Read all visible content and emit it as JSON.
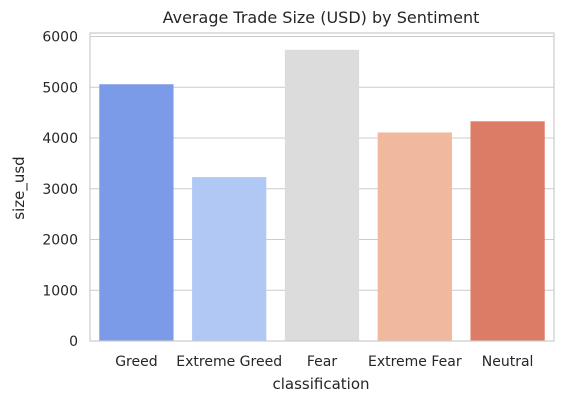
{
  "chart_data": {
    "type": "bar",
    "title": "Average Trade Size (USD) by Sentiment",
    "xlabel": "classification",
    "ylabel": "size_usd",
    "categories": [
      "Greed",
      "Extreme Greed",
      "Fear",
      "Extreme Fear",
      "Neutral"
    ],
    "values": [
      5060,
      3230,
      5740,
      4110,
      4330
    ],
    "colors": [
      "#7b9ae8",
      "#b1c8f5",
      "#dcdcdc",
      "#f0b99e",
      "#dc7b66"
    ],
    "yticks": [
      0,
      1000,
      2000,
      3000,
      4000,
      5000,
      6000
    ],
    "ytick_labels": [
      "0",
      "1000",
      "2000",
      "3000",
      "4000",
      "5000",
      "6000"
    ],
    "ylim": [
      0,
      6070
    ],
    "grid": "horizontal",
    "style": {
      "grid_color": "#cccccc",
      "spine_color": "#cccccc",
      "text_color": "#262626"
    }
  }
}
